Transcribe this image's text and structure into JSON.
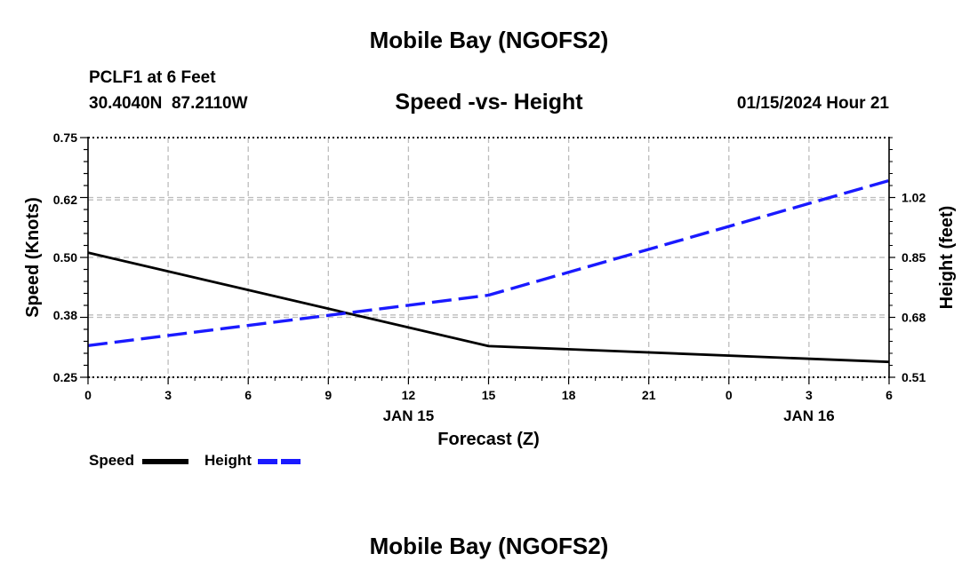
{
  "page": {
    "title_top": "Mobile Bay (NGOFS2)",
    "title_bottom": "Mobile Bay (NGOFS2)",
    "station": "PCLF1 at 6 Feet",
    "coords": "30.4040N  87.2110W",
    "date_label": "01/15/2024 Hour 21"
  },
  "chart_data": {
    "type": "line",
    "title": "Speed -vs- Height",
    "xlabel": "Forecast (Z)",
    "ylabel": "Speed (Knots)",
    "y2label": "Height (feet)",
    "x_ticks": [
      "0",
      "3",
      "6",
      "9",
      "12",
      "15",
      "18",
      "21",
      "0",
      "3",
      "6"
    ],
    "x_date_labels": [
      {
        "at": 12,
        "label": "JAN 15"
      },
      {
        "at": 27,
        "label": "JAN 16"
      }
    ],
    "xlim": [
      0,
      30
    ],
    "ylim": [
      0.25,
      0.75
    ],
    "y_ticks": [
      "0.75",
      "0.62",
      "0.50",
      "0.38",
      "0.25"
    ],
    "y2lim": [
      0.51,
      1.19
    ],
    "y2_ticks": [
      "1.02",
      "0.85",
      "0.68",
      "0.51"
    ],
    "grid": true,
    "series": [
      {
        "name": "Speed",
        "axis": "left",
        "color": "#000000",
        "style": "solid",
        "x": [
          0,
          15,
          30
        ],
        "y": [
          0.51,
          0.315,
          0.282
        ]
      },
      {
        "name": "Height",
        "axis": "right",
        "color": "#1a1aff",
        "style": "dashed",
        "x": [
          0,
          15,
          30
        ],
        "y": [
          0.6,
          0.743,
          1.068
        ]
      }
    ]
  }
}
